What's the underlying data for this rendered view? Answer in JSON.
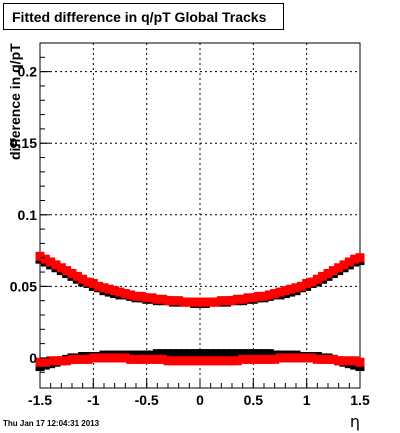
{
  "title": "Fitted difference in q/pT  Global Tracks",
  "timestamp": "Thu Jan 17 12:04:31 2013",
  "chart_data": {
    "type": "scatter",
    "title": "Fitted difference in q/pT  Global Tracks",
    "xlabel": "η",
    "ylabel": "difference in q/pT",
    "xlim": [
      -1.5,
      1.5
    ],
    "ylim": [
      -0.021,
      0.22
    ],
    "grid": true,
    "x_ticks": [
      "-1.5",
      "-1",
      "-0.5",
      "0",
      "0.5",
      "1",
      "1.5"
    ],
    "y_ticks": [
      "0",
      "0.05",
      "0.1",
      "0.15",
      "0.2"
    ],
    "series": [
      {
        "color": "#ff0000",
        "marker": "square",
        "x": [
          -1.5,
          -1.45,
          -1.4,
          -1.35,
          -1.3,
          -1.25,
          -1.2,
          -1.15,
          -1.1,
          -1.05,
          -1.0,
          -0.95,
          -0.9,
          -0.85,
          -0.8,
          -0.75,
          -0.7,
          -0.65,
          -0.6,
          -0.55,
          -0.5,
          -0.45,
          -0.4,
          -0.35,
          -0.3,
          -0.25,
          -0.2,
          -0.15,
          -0.1,
          -0.05,
          0.0,
          0.05,
          0.1,
          0.15,
          0.2,
          0.25,
          0.3,
          0.35,
          0.4,
          0.45,
          0.5,
          0.55,
          0.6,
          0.65,
          0.7,
          0.75,
          0.8,
          0.85,
          0.9,
          0.95,
          1.0,
          1.05,
          1.1,
          1.15,
          1.2,
          1.25,
          1.3,
          1.35,
          1.4,
          1.45,
          1.5
        ],
        "y": [
          0.071,
          0.069,
          0.067,
          0.065,
          0.063,
          0.061,
          0.059,
          0.057,
          0.055,
          0.053,
          0.052,
          0.05,
          0.049,
          0.048,
          0.047,
          0.046,
          0.045,
          0.044,
          0.043,
          0.043,
          0.042,
          0.042,
          0.041,
          0.041,
          0.04,
          0.04,
          0.04,
          0.039,
          0.039,
          0.039,
          0.039,
          0.039,
          0.039,
          0.039,
          0.04,
          0.04,
          0.04,
          0.041,
          0.041,
          0.042,
          0.042,
          0.043,
          0.043,
          0.044,
          0.045,
          0.046,
          0.047,
          0.048,
          0.049,
          0.05,
          0.052,
          0.053,
          0.055,
          0.057,
          0.059,
          0.061,
          0.063,
          0.065,
          0.067,
          0.069,
          0.07
        ]
      },
      {
        "color": "#ff0000",
        "marker": "square",
        "x": [
          -1.5,
          -1.45,
          -1.4,
          -1.35,
          -1.3,
          -1.25,
          -1.2,
          -1.15,
          -1.1,
          -1.05,
          -1.0,
          -0.95,
          -0.9,
          -0.85,
          -0.8,
          -0.75,
          -0.7,
          -0.65,
          -0.6,
          -0.55,
          -0.5,
          -0.45,
          -0.4,
          -0.35,
          -0.3,
          -0.25,
          -0.2,
          -0.15,
          -0.1,
          -0.05,
          0.0,
          0.05,
          0.1,
          0.15,
          0.2,
          0.25,
          0.3,
          0.35,
          0.4,
          0.45,
          0.5,
          0.55,
          0.6,
          0.65,
          0.7,
          0.75,
          0.8,
          0.85,
          0.9,
          0.95,
          1.0,
          1.05,
          1.1,
          1.15,
          1.2,
          1.25,
          1.3,
          1.35,
          1.4,
          1.45,
          1.5
        ],
        "y": [
          -0.003,
          -0.003,
          -0.002,
          -0.002,
          -0.002,
          -0.002,
          -0.001,
          -0.001,
          -0.001,
          -0.001,
          0.0,
          0.0,
          0.0,
          0.0,
          0.0,
          0.0,
          0.0,
          -0.001,
          -0.001,
          -0.001,
          -0.001,
          -0.001,
          -0.001,
          -0.001,
          -0.002,
          -0.002,
          -0.002,
          -0.002,
          -0.002,
          -0.002,
          -0.002,
          -0.002,
          -0.002,
          -0.002,
          -0.002,
          -0.002,
          -0.002,
          -0.002,
          -0.001,
          -0.001,
          -0.001,
          -0.001,
          -0.001,
          -0.001,
          -0.001,
          0.0,
          0.0,
          0.0,
          0.0,
          0.0,
          0.0,
          0.0,
          -0.001,
          -0.001,
          -0.001,
          -0.001,
          -0.002,
          -0.002,
          -0.002,
          -0.002,
          -0.003
        ]
      },
      {
        "color": "#000000",
        "marker": "square",
        "x": [
          -1.5,
          -1.45,
          -1.4,
          -1.35,
          -1.3,
          -1.25,
          -1.2,
          -1.15,
          -1.1,
          -1.05,
          -1.0,
          -0.95,
          -0.9,
          -0.85,
          -0.8,
          -0.75,
          -0.7,
          -0.65,
          -0.6,
          -0.55,
          -0.5,
          -0.45,
          -0.4,
          -0.35,
          -0.3,
          -0.25,
          -0.2,
          -0.15,
          -0.1,
          -0.05,
          0.0,
          0.05,
          0.1,
          0.15,
          0.2,
          0.25,
          0.3,
          0.35,
          0.4,
          0.45,
          0.5,
          0.55,
          0.6,
          0.65,
          0.7,
          0.75,
          0.8,
          0.85,
          0.9,
          0.95,
          1.0,
          1.05,
          1.1,
          1.15,
          1.2,
          1.25,
          1.3,
          1.35,
          1.4,
          1.45,
          1.5
        ],
        "y": [
          -0.006,
          -0.005,
          -0.004,
          -0.003,
          -0.002,
          -0.001,
          0.0,
          0.0,
          0.001,
          0.001,
          0.001,
          0.001,
          0.002,
          0.002,
          0.002,
          0.002,
          0.002,
          0.002,
          0.002,
          0.002,
          0.002,
          0.002,
          0.003,
          0.003,
          0.003,
          0.003,
          0.003,
          0.003,
          0.003,
          0.003,
          0.003,
          0.003,
          0.003,
          0.003,
          0.003,
          0.003,
          0.003,
          0.003,
          0.003,
          0.003,
          0.003,
          0.003,
          0.003,
          0.003,
          0.002,
          0.002,
          0.002,
          0.002,
          0.002,
          0.001,
          0.001,
          0.001,
          0.001,
          0.0,
          0.0,
          -0.001,
          -0.002,
          -0.003,
          -0.004,
          -0.005,
          -0.006
        ]
      },
      {
        "color": "#000000",
        "marker": "square",
        "x": [
          -1.5,
          -1.45,
          -1.4,
          -1.35,
          -1.3,
          -1.25,
          -1.2,
          -1.15,
          -1.1,
          -1.05,
          -1.0,
          -0.95,
          -0.9,
          -0.85,
          -0.8,
          -0.75,
          -0.7,
          -0.65,
          -0.6,
          -0.55,
          -0.5,
          -0.45,
          -0.4,
          -0.35,
          -0.3,
          -0.25,
          -0.2,
          -0.15,
          -0.1,
          -0.05,
          0.0,
          0.05,
          0.1,
          0.15,
          0.2,
          0.25,
          0.3,
          0.35,
          0.4,
          0.45,
          0.5,
          0.55,
          0.6,
          0.65,
          0.7,
          0.75,
          0.8,
          0.85,
          0.9,
          0.95,
          1.0,
          1.05,
          1.1,
          1.15,
          1.2,
          1.25,
          1.3,
          1.35,
          1.4,
          1.45,
          1.5
        ],
        "y": [
          0.069,
          0.067,
          0.065,
          0.063,
          0.061,
          0.059,
          0.057,
          0.055,
          0.053,
          0.052,
          0.05,
          0.049,
          0.047,
          0.046,
          0.045,
          0.044,
          0.044,
          0.043,
          0.042,
          0.042,
          0.041,
          0.041,
          0.04,
          0.04,
          0.04,
          0.039,
          0.039,
          0.039,
          0.039,
          0.038,
          0.038,
          0.038,
          0.039,
          0.039,
          0.039,
          0.039,
          0.04,
          0.04,
          0.04,
          0.041,
          0.041,
          0.042,
          0.042,
          0.043,
          0.044,
          0.044,
          0.045,
          0.046,
          0.047,
          0.049,
          0.05,
          0.052,
          0.053,
          0.055,
          0.057,
          0.059,
          0.061,
          0.063,
          0.065,
          0.067,
          0.068
        ]
      }
    ]
  }
}
